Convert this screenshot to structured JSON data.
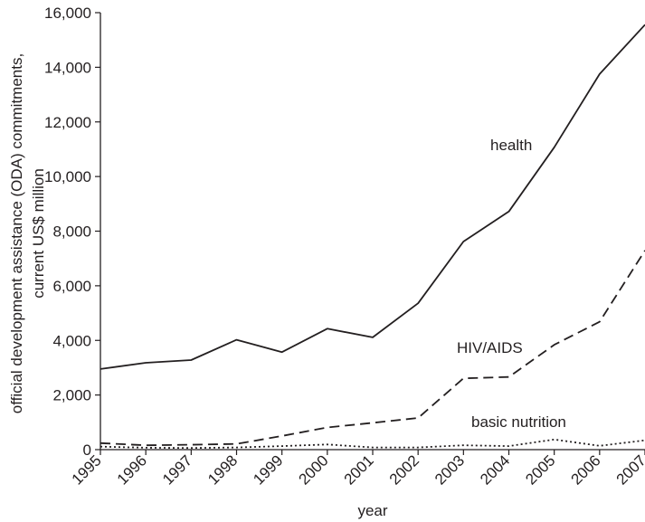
{
  "chart_data": {
    "type": "line",
    "title": "",
    "xlabel": "year",
    "ylabel_lines": [
      "official development assistance (ODA) commitments,",
      "current US$ million"
    ],
    "x": [
      "1995",
      "1996",
      "1997",
      "1998",
      "1999",
      "2000",
      "2001",
      "2002",
      "2003",
      "2004",
      "2005",
      "2006",
      "2007"
    ],
    "ylim": [
      0,
      16000
    ],
    "yticks": [
      {
        "value": 0,
        "label": "0"
      },
      {
        "value": 2000,
        "label": "2,000"
      },
      {
        "value": 4000,
        "label": "4,000"
      },
      {
        "value": 6000,
        "label": "6,000"
      },
      {
        "value": 8000,
        "label": "8,000"
      },
      {
        "value": 10000,
        "label": "10,000"
      },
      {
        "value": 12000,
        "label": "12,000"
      },
      {
        "value": 14000,
        "label": "14,000"
      },
      {
        "value": 16000,
        "label": "16,000"
      }
    ],
    "grid": false,
    "legend": "none",
    "series": [
      {
        "name": "health",
        "line_style": "solid",
        "color": "#231f20",
        "values": [
          2950,
          3180,
          3280,
          4020,
          3570,
          4430,
          4110,
          5360,
          7620,
          8720,
          11070,
          13750,
          15560
        ]
      },
      {
        "name": "HIV/AIDS",
        "line_style": "dashed",
        "color": "#231f20",
        "values": [
          240,
          160,
          180,
          210,
          500,
          810,
          980,
          1160,
          2610,
          2660,
          3840,
          4680,
          7290
        ]
      },
      {
        "name": "basic nutrition",
        "line_style": "dotted",
        "color": "#231f20",
        "values": [
          110,
          70,
          60,
          80,
          130,
          190,
          80,
          80,
          160,
          130,
          370,
          140,
          340
        ]
      }
    ]
  }
}
